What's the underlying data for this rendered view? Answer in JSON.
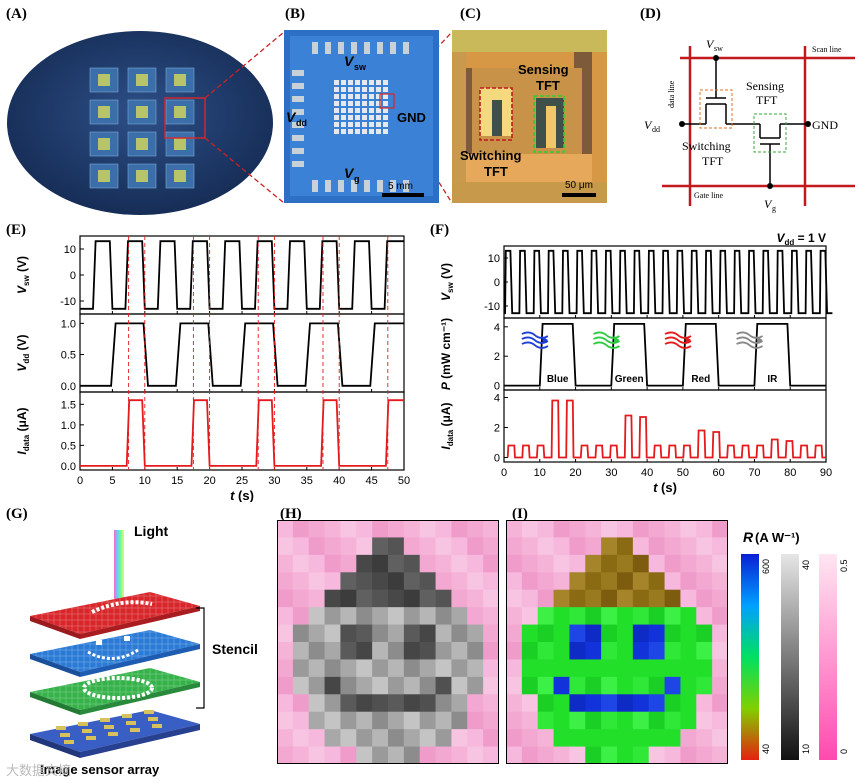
{
  "figure": {
    "panel_labels": [
      "(A)",
      "(B)",
      "(C)",
      "(D)",
      "(E)",
      "(F)",
      "(G)",
      "(H)",
      "(I)"
    ],
    "watermark": "大数据文摘"
  },
  "panel_b": {
    "label_vsw": "V",
    "label_vsw_sub": "sw",
    "label_vdd": "V",
    "label_vdd_sub": "dd",
    "label_vg": "V",
    "label_vg_sub": "g",
    "label_gnd": "GND",
    "scale_bar": "5 mm"
  },
  "panel_c": {
    "label_sensing": "Sensing",
    "label_sensing_2": "TFT",
    "label_switching": "Switching",
    "label_switching_2": "TFT",
    "scale_bar": "50 μm"
  },
  "panel_d": {
    "vsw": "V",
    "vsw_sub": "sw",
    "vdd": "V",
    "vdd_sub": "dd",
    "vg": "V",
    "vg_sub": "g",
    "gnd": "GND",
    "scan_line": "Scan line",
    "data_line": "data line",
    "gate_line": "Gate line",
    "sensing": "Sensing",
    "sensing_2": "TFT",
    "switching": "Switching",
    "switching_2": "TFT"
  },
  "chart_data": [
    {
      "id": "E",
      "type": "line",
      "xlabel": "t (s)",
      "xlim": [
        0,
        50
      ],
      "xticks": [
        0,
        5,
        10,
        15,
        20,
        25,
        30,
        35,
        40,
        45,
        50
      ],
      "dashed_markers": [
        7.5,
        10,
        17.5,
        20,
        27.5,
        30,
        37.5,
        40,
        47.5
      ],
      "series": [
        {
          "ylabel": "V",
          "ylabel_sub": "sw",
          "ylabel_unit": " (V)",
          "color": "#000000",
          "ylim": [
            -15,
            15
          ],
          "yticks": [
            -10,
            0,
            10
          ],
          "x": [
            0,
            2,
            2.4,
            4.6,
            5,
            7,
            7.4,
            9.6,
            10,
            12,
            12.4,
            14.6,
            15,
            17,
            17.4,
            19.6,
            20,
            22,
            22.4,
            24.6,
            25,
            27,
            27.4,
            29.6,
            30,
            32,
            32.4,
            34.6,
            35,
            37,
            37.4,
            39.6,
            40,
            42,
            42.4,
            44.6,
            45,
            47,
            47.4,
            49.6,
            50
          ],
          "y": [
            -13,
            -13,
            13,
            13,
            -13,
            -13,
            13,
            13,
            -13,
            -13,
            13,
            13,
            -13,
            -13,
            13,
            13,
            -13,
            -13,
            13,
            13,
            -13,
            -13,
            13,
            13,
            -13,
            -13,
            13,
            13,
            -13,
            -13,
            13,
            13,
            -13,
            -13,
            13,
            13,
            -13,
            -13,
            13,
            13,
            13
          ]
        },
        {
          "ylabel": "V",
          "ylabel_sub": "dd",
          "ylabel_unit": " (V)",
          "color": "#000000",
          "ylim": [
            -0.1,
            1.15
          ],
          "yticks": [
            0.0,
            0.5,
            1.0
          ],
          "ytick_labels": [
            "0.0",
            "0.5",
            "1.0"
          ],
          "x": [
            0,
            4.8,
            5.5,
            9.8,
            10.5,
            14.8,
            15.5,
            19.8,
            20.5,
            24.8,
            25.5,
            29.8,
            30.5,
            34.8,
            35.5,
            39.8,
            40.5,
            44.8,
            45.5,
            50
          ],
          "y": [
            0,
            0,
            1,
            1,
            0,
            0,
            1,
            1,
            0,
            0,
            1,
            1,
            0,
            0,
            1,
            1,
            0,
            0,
            1,
            1
          ]
        },
        {
          "ylabel": "I",
          "ylabel_sub": "data",
          "ylabel_unit": " (μA)",
          "color": "#e41a1c",
          "ylim": [
            -0.1,
            1.8
          ],
          "yticks": [
            0.0,
            0.5,
            1.0,
            1.5
          ],
          "ytick_labels": [
            "0.0",
            "0.5",
            "1.0",
            "1.5"
          ],
          "x": [
            0,
            7.2,
            7.6,
            9.6,
            10,
            17.2,
            17.6,
            19.6,
            20,
            27.2,
            27.6,
            29.6,
            30,
            37.2,
            37.6,
            39.6,
            40,
            47.2,
            47.6,
            50
          ],
          "y": [
            0,
            0,
            1.6,
            1.6,
            0,
            0,
            1.6,
            1.6,
            0,
            0,
            1.6,
            1.6,
            0,
            0,
            1.6,
            1.6,
            0,
            0,
            1.6,
            1.6
          ]
        }
      ]
    },
    {
      "id": "F",
      "type": "line",
      "xlabel": "t (s)",
      "xlim": [
        0,
        90
      ],
      "xticks": [
        0,
        10,
        20,
        30,
        40,
        50,
        60,
        70,
        80,
        90
      ],
      "annotation": "V",
      "annotation_sub": "dd",
      "annotation_value": " = 1 V",
      "light_labels": [
        "Blue",
        "Green",
        "Red",
        "IR"
      ],
      "light_colors": [
        "#1f3fd9",
        "#2ecc40",
        "#e41a1c",
        "#888888"
      ],
      "series": [
        {
          "ylabel": "V",
          "ylabel_sub": "sw",
          "ylabel_unit": " (V)",
          "color": "#000000",
          "ylim": [
            -15,
            15
          ],
          "yticks": [
            -10,
            0,
            10
          ],
          "period": 4,
          "high": 13,
          "low": -13
        },
        {
          "ylabel": "P",
          "ylabel_unit": " (mW cm⁻¹)",
          "color": "#000000",
          "ylim": [
            -0.3,
            4.6
          ],
          "yticks": [
            0,
            2,
            4
          ],
          "x": [
            0,
            10,
            10.8,
            19.2,
            20,
            30,
            30.8,
            39.2,
            40,
            50,
            50.8,
            59.2,
            60,
            70,
            70.8,
            79.2,
            80,
            90
          ],
          "y": [
            0,
            0,
            4.2,
            4.2,
            0,
            0,
            4.2,
            4.2,
            0,
            0,
            4.2,
            4.2,
            0,
            0,
            4.2,
            4.2,
            0,
            0
          ]
        },
        {
          "ylabel": "I",
          "ylabel_sub": "data",
          "ylabel_unit": " (μA)",
          "color": "#e41a1c",
          "ylim": [
            -0.3,
            4.5
          ],
          "yticks": [
            0,
            2,
            4
          ],
          "pulse_peaks": [
            0.8,
            0.8,
            0.8,
            3.8,
            3.8,
            0.8,
            0.8,
            0.8,
            2.8,
            2.7,
            0.8,
            0.8,
            0.8,
            1.8,
            1.7,
            0.8,
            0.8,
            0.8,
            1.2,
            1.1,
            0.8,
            0.8
          ]
        }
      ]
    }
  ],
  "panel_g": {
    "light": "Light",
    "stencil": "Stencil",
    "array": "Image sensor array"
  },
  "panel_hi": {
    "colorbar_title": "R",
    "colorbar_unit": " (A W⁻¹)",
    "cb1_top": "600",
    "cb1_bottom": "40",
    "cb2_top": "40",
    "cb2_bottom": "10",
    "cb3_top": "0.5",
    "cb3_bottom": "0"
  }
}
